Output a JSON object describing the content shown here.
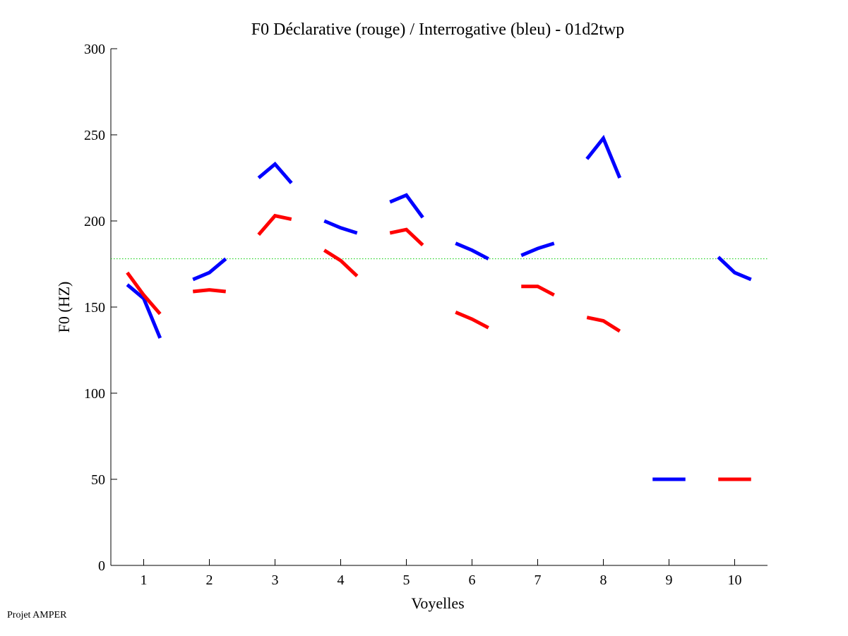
{
  "chart_data": {
    "type": "line",
    "title": "F0 Déclarative (rouge) / Interrogative (bleu) - 01d2twp",
    "xlabel": "Voyelles",
    "ylabel": "F0 (HZ)",
    "xlim": [
      0.5,
      10.5
    ],
    "ylim": [
      0,
      300
    ],
    "x_ticks": [
      1,
      2,
      3,
      4,
      5,
      6,
      7,
      8,
      9,
      10
    ],
    "y_ticks": [
      0,
      50,
      100,
      150,
      200,
      250,
      300
    ],
    "reference_line": {
      "y": 178,
      "color": "#00cc00",
      "style": "dotted"
    },
    "series": [
      {
        "name": "Interrogative (bleu)",
        "color": "#0000ff",
        "segments": [
          {
            "vowel": 1,
            "values": [
              163,
              155,
              132
            ]
          },
          {
            "vowel": 2,
            "values": [
              166,
              170,
              178
            ]
          },
          {
            "vowel": 3,
            "values": [
              225,
              233,
              222
            ]
          },
          {
            "vowel": 4,
            "values": [
              200,
              196,
              193
            ]
          },
          {
            "vowel": 5,
            "values": [
              211,
              215,
              202
            ]
          },
          {
            "vowel": 6,
            "values": [
              187,
              183,
              178
            ]
          },
          {
            "vowel": 7,
            "values": [
              180,
              184,
              187
            ]
          },
          {
            "vowel": 8,
            "values": [
              236,
              248,
              225
            ]
          },
          {
            "vowel": 9,
            "values": [
              50,
              50,
              50
            ]
          },
          {
            "vowel": 10,
            "values": [
              179,
              170,
              166
            ]
          }
        ]
      },
      {
        "name": "Déclarative (rouge)",
        "color": "#ff0000",
        "segments": [
          {
            "vowel": 1,
            "values": [
              170,
              157,
              146
            ]
          },
          {
            "vowel": 2,
            "values": [
              159,
              160,
              159
            ]
          },
          {
            "vowel": 3,
            "values": [
              192,
              203,
              201
            ]
          },
          {
            "vowel": 4,
            "values": [
              183,
              177,
              168
            ]
          },
          {
            "vowel": 5,
            "values": [
              193,
              195,
              186
            ]
          },
          {
            "vowel": 6,
            "values": [
              147,
              143,
              138
            ]
          },
          {
            "vowel": 7,
            "values": [
              162,
              162,
              157
            ]
          },
          {
            "vowel": 8,
            "values": [
              144,
              142,
              136
            ]
          },
          {
            "vowel": 10,
            "values": [
              50,
              50,
              50
            ]
          }
        ]
      }
    ]
  },
  "footer": "Projet AMPER"
}
